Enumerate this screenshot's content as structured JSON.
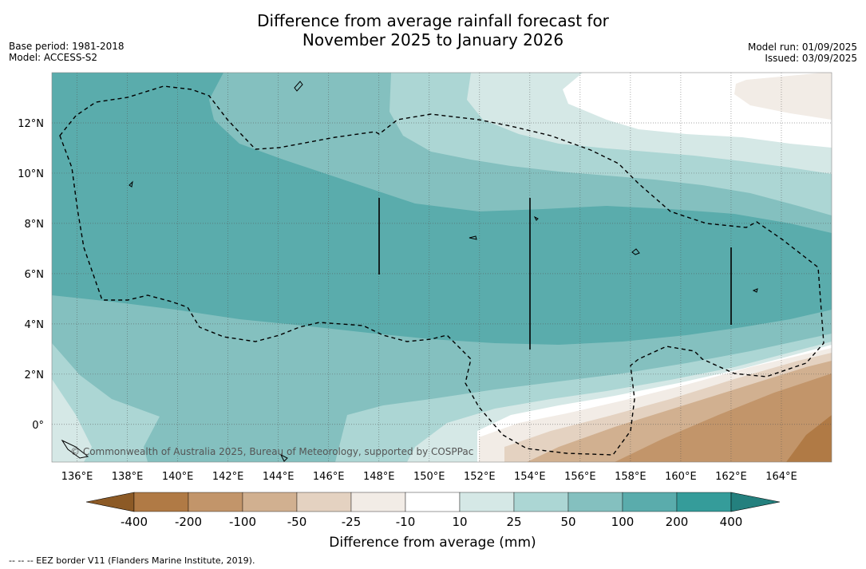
{
  "title_line1": "Difference from average rainfall forecast for",
  "title_line2": "November 2025 to January 2026",
  "base_period": "Base period: 1981-2018",
  "model": "Model: ACCESS-S2",
  "model_run": "Model run: 01/09/2025",
  "issued": "Issued: 03/09/2025",
  "copyright": "© Commonwealth of Australia 2025, Bureau of Meteorology, supported by COSPPac",
  "footnote": "--  --  -- EEZ border V11 (Flanders Marine Institute, 2019).",
  "map": {
    "lon_range": [
      135,
      166
    ],
    "lat_range": [
      -1.5,
      14
    ],
    "lon_ticks": [
      "136°E",
      "138°E",
      "140°E",
      "142°E",
      "144°E",
      "146°E",
      "148°E",
      "150°E",
      "152°E",
      "154°E",
      "156°E",
      "158°E",
      "160°E",
      "162°E",
      "164°E"
    ],
    "lat_ticks": [
      "12°N",
      "10°N",
      "8°N",
      "6°N",
      "4°N",
      "2°N",
      "0°"
    ]
  },
  "colorbar": {
    "title": "Difference from average (mm)",
    "labels": [
      "-400",
      "-200",
      "-100",
      "-50",
      "-25",
      "-10",
      "10",
      "25",
      "50",
      "100",
      "200",
      "400"
    ],
    "colors": [
      "#8c5a26",
      "#b07a45",
      "#c2956a",
      "#d1b090",
      "#e4d2c1",
      "#f2ece6",
      "#ffffff",
      "#d5e8e6",
      "#acd6d4",
      "#84c0bf",
      "#5aacac",
      "#359c9a",
      "#24807e"
    ]
  }
}
